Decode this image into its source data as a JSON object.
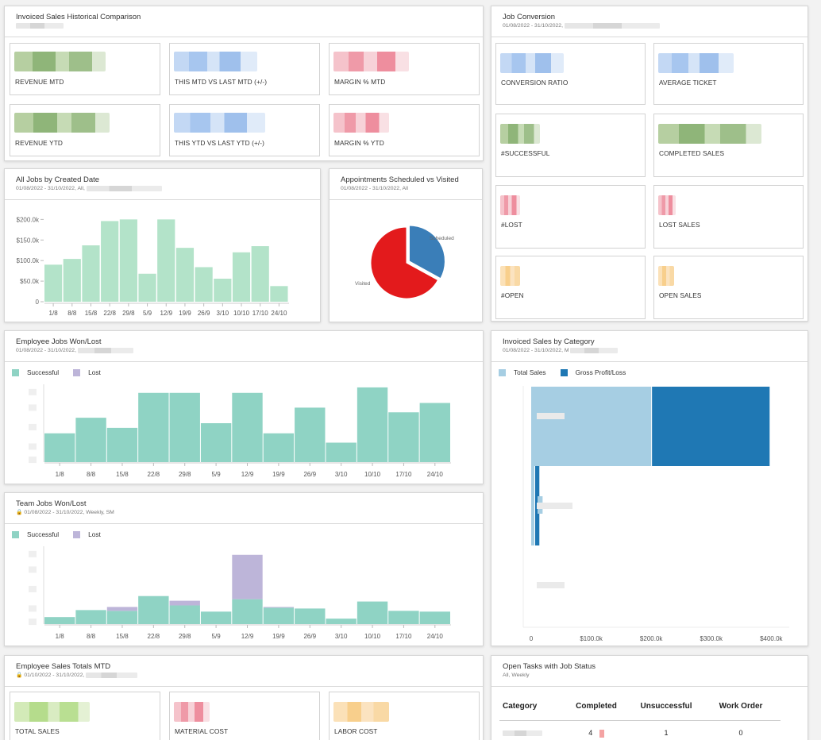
{
  "colors": {
    "green_bar": "#b3e3c9",
    "teal_bar": "#8fd3c4",
    "lost_bar": "#bdb5d9",
    "pie_red": "#e31a1c",
    "pie_blue": "#3a7eb8",
    "light_blue": "#a6cee3",
    "dark_blue": "#1f78b4"
  },
  "invoiced_hist": {
    "title": "Invoiced Sales Historical Comparison",
    "cards": [
      {
        "label": "REVENUE MTD",
        "tone": "green"
      },
      {
        "label": "THIS MTD VS LAST MTD (+/-)",
        "tone": "blue"
      },
      {
        "label": "MARGIN % MTD",
        "tone": "red"
      },
      {
        "label": "REVENUE YTD",
        "tone": "green"
      },
      {
        "label": "THIS YTD VS LAST YTD (+/-)",
        "tone": "blue"
      },
      {
        "label": "MARGIN % YTD",
        "tone": "red"
      }
    ]
  },
  "job_conversion": {
    "title": "Job Conversion",
    "subtitle": "01/08/2022 - 31/10/2022,",
    "cards": [
      {
        "label": "CONVERSION RATIO",
        "tone": "blue"
      },
      {
        "label": "AVERAGE TICKET",
        "tone": "blue"
      },
      {
        "label": "#SUCCESSFUL",
        "tone": "green"
      },
      {
        "label": "COMPLETED SALES",
        "tone": "green"
      },
      {
        "label": "#LOST",
        "tone": "red"
      },
      {
        "label": "LOST SALES",
        "tone": "red"
      },
      {
        "label": "#OPEN",
        "tone": "orange"
      },
      {
        "label": "OPEN SALES",
        "tone": "orange"
      }
    ]
  },
  "all_jobs": {
    "title": "All Jobs by Created Date",
    "subtitle": "01/08/2022 - 31/10/2022, All,"
  },
  "appointments": {
    "title": "Appointments Scheduled vs Visited",
    "subtitle": "01/08/2022 - 31/10/2022, All"
  },
  "employee_jobs": {
    "title": "Employee Jobs Won/Lost",
    "subtitle": "01/08/2022 - 31/10/2022,",
    "legend": [
      "Successful",
      "Lost"
    ]
  },
  "team_jobs": {
    "title": "Team Jobs Won/Lost",
    "subtitle": "01/08/2022 - 31/10/2022, Weekly, SM",
    "legend": [
      "Successful",
      "Lost"
    ]
  },
  "invoiced_category": {
    "title": "Invoiced Sales by Category",
    "subtitle": "01/08/2022 - 31/10/2022, M",
    "legend": [
      "Total Sales",
      "Gross Profit/Loss"
    ]
  },
  "employee_sales": {
    "title": "Employee Sales Totals MTD",
    "subtitle": "01/10/2022 - 31/10/2022,",
    "cards": [
      {
        "label": "TOTAL SALES",
        "tone": "lime"
      },
      {
        "label": "MATERIAL COST",
        "tone": "red"
      },
      {
        "label": "LABOR COST",
        "tone": "orange"
      }
    ]
  },
  "open_tasks": {
    "title": "Open Tasks with Job Status",
    "subtitle": "All, Weekly",
    "headers": [
      "Category",
      "Completed",
      "Unsuccessful",
      "Work Order"
    ],
    "rows": [
      {
        "completed": "4",
        "unsuccessful": "1",
        "work_order": "0"
      }
    ]
  },
  "chart_data": [
    {
      "type": "bar",
      "title": "All Jobs by Created Date",
      "categories": [
        "1/8",
        "8/8",
        "15/8",
        "22/8",
        "29/8",
        "5/9",
        "12/9",
        "19/9",
        "26/9",
        "3/10",
        "10/10",
        "17/10",
        "24/10"
      ],
      "values": [
        90000,
        104000,
        137000,
        196000,
        200000,
        68000,
        200000,
        131000,
        84000,
        56000,
        120000,
        135000,
        38000
      ],
      "ylim": [
        0,
        220000
      ],
      "y_ticks": [
        0,
        50000,
        100000,
        150000,
        200000
      ],
      "y_tick_labels": [
        "0",
        "$50.0k",
        "$100.0k",
        "$150.0k",
        "$200.0k"
      ]
    },
    {
      "type": "pie",
      "title": "Appointments Scheduled vs Visited",
      "labels": [
        "Scheduled",
        "Visited"
      ],
      "values": [
        33,
        67
      ]
    },
    {
      "type": "bar",
      "title": "Employee Jobs Won/Lost",
      "categories": [
        "1/8",
        "8/8",
        "15/8",
        "22/8",
        "29/8",
        "5/9",
        "12/9",
        "19/9",
        "26/9",
        "3/10",
        "10/10",
        "17/10",
        "24/10"
      ],
      "series": [
        {
          "name": "Successful",
          "values": [
            37,
            57,
            44,
            89,
            89,
            50,
            89,
            37,
            70,
            25,
            96,
            64,
            76
          ]
        },
        {
          "name": "Lost",
          "values": [
            0,
            0,
            0,
            0,
            0,
            0,
            0,
            0,
            0,
            0,
            0,
            0,
            0
          ]
        }
      ],
      "ylim": [
        0,
        100
      ]
    },
    {
      "type": "bar",
      "title": "Team Jobs Won/Lost",
      "categories": [
        "1/8",
        "8/8",
        "15/8",
        "22/8",
        "29/8",
        "5/9",
        "12/9",
        "19/9",
        "26/9",
        "3/10",
        "10/10",
        "17/10",
        "24/10"
      ],
      "series": [
        {
          "name": "Successful",
          "values": [
            9,
            18,
            17,
            36,
            24,
            16,
            32,
            21,
            20,
            7,
            29,
            17,
            16
          ]
        },
        {
          "name": "Lost",
          "values": [
            0,
            0,
            5,
            0,
            6,
            0,
            57,
            1,
            0,
            0,
            0,
            0,
            0
          ]
        }
      ],
      "ylim": [
        0,
        100
      ]
    },
    {
      "type": "bar",
      "orientation": "horizontal",
      "title": "Invoiced Sales by Category",
      "categories": [
        "",
        "",
        ""
      ],
      "series": [
        {
          "name": "Total Sales",
          "values": [
            200000,
            19000,
            0
          ]
        },
        {
          "name": "Gross Profit/Loss",
          "values": [
            196000,
            7000,
            0
          ]
        }
      ],
      "stacked": true,
      "xlim": [
        0,
        430000
      ],
      "x_ticks": [
        0,
        100000,
        200000,
        300000,
        400000
      ],
      "x_tick_labels": [
        "0",
        "$100.0k",
        "$200.0k",
        "$300.0k",
        "$400.0k"
      ]
    }
  ]
}
